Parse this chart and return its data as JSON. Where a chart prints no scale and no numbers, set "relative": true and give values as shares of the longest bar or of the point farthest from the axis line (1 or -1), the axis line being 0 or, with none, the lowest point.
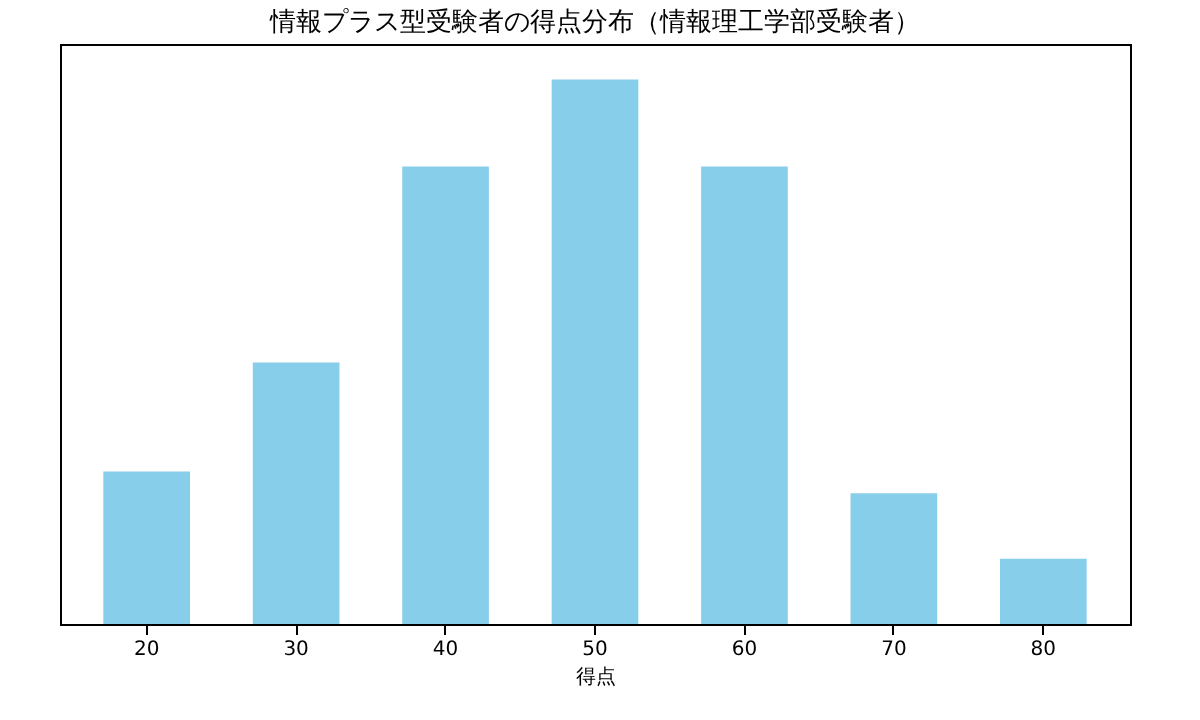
{
  "chart_data": {
    "type": "bar",
    "title": "情報プラス型受験者の得点分布（情報理工学部受験者）",
    "xlabel": "得点",
    "categories": [
      "20",
      "30",
      "40",
      "50",
      "60",
      "70",
      "80"
    ],
    "values": [
      0.28,
      0.48,
      0.84,
      1,
      0.84,
      0.24,
      0.12
    ],
    "color": "#87ceeb",
    "relative": true,
    "tick_labels": "x",
    "grid": false
  }
}
